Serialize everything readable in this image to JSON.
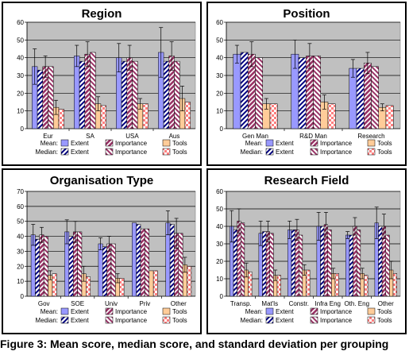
{
  "caption": "Figure 3: Mean score, median score, and standard deviation per grouping",
  "legend": {
    "mean_label": "Mean:",
    "median_label": "Median:",
    "items": [
      "Extent",
      "Importance",
      "Tools"
    ]
  },
  "colors": {
    "extent": "#9999ff",
    "importance": "#993366",
    "tools": "#ffcc99",
    "plot_bg": "#c0c0c0",
    "gridline": "#000000",
    "median_extent_stripe": "#000080",
    "median_importance_stripe": "#993366",
    "median_tools_dots": "#ff8080"
  },
  "chart_data": [
    {
      "type": "bar",
      "title": "Region",
      "categories": [
        "Eur",
        "SA",
        "USA",
        "Aus"
      ],
      "ylim": [
        0,
        60
      ],
      "yticks": [
        0,
        10,
        20,
        30,
        40,
        50,
        60
      ],
      "grid": true,
      "legend_position": "bottom",
      "series": [
        {
          "name": "Extent",
          "stat": "mean",
          "values": [
            35,
            41,
            40,
            43
          ],
          "error": [
            10,
            6,
            8,
            14
          ]
        },
        {
          "name": "Extent",
          "stat": "median",
          "values": [
            33,
            38,
            38,
            38
          ]
        },
        {
          "name": "Importance",
          "stat": "mean",
          "values": [
            35,
            42,
            40,
            41
          ],
          "error": [
            6,
            7,
            7,
            8
          ]
        },
        {
          "name": "Importance",
          "stat": "median",
          "values": [
            35,
            43,
            38,
            38
          ]
        },
        {
          "name": "Tools",
          "stat": "mean",
          "values": [
            12,
            14,
            14,
            17
          ],
          "error": [
            4,
            4,
            3,
            7
          ]
        },
        {
          "name": "Tools",
          "stat": "median",
          "values": [
            11,
            13,
            14,
            15
          ]
        }
      ]
    },
    {
      "type": "bar",
      "title": "Position",
      "categories": [
        "Gen Man",
        "R&D Man",
        "Research"
      ],
      "ylim": [
        0,
        60
      ],
      "yticks": [
        0,
        10,
        20,
        30,
        40,
        50,
        60
      ],
      "grid": true,
      "legend_position": "bottom",
      "series": [
        {
          "name": "Extent",
          "stat": "mean",
          "values": [
            42,
            42,
            34
          ],
          "error": [
            5,
            8,
            5
          ]
        },
        {
          "name": "Extent",
          "stat": "median",
          "values": [
            43,
            40,
            34
          ]
        },
        {
          "name": "Importance",
          "stat": "mean",
          "values": [
            42,
            41,
            37
          ],
          "error": [
            7,
            7,
            6
          ]
        },
        {
          "name": "Importance",
          "stat": "median",
          "values": [
            40,
            41,
            35
          ]
        },
        {
          "name": "Tools",
          "stat": "mean",
          "values": [
            14,
            15,
            12
          ],
          "error": [
            3,
            4,
            2
          ]
        },
        {
          "name": "Tools",
          "stat": "median",
          "values": [
            14,
            14,
            13
          ]
        }
      ]
    },
    {
      "type": "bar",
      "title": "Organisation Type",
      "categories": [
        "Gov",
        "SOE",
        "Univ",
        "Priv",
        "Other"
      ],
      "ylim": [
        0,
        70
      ],
      "yticks": [
        0,
        10,
        20,
        30,
        40,
        50,
        60,
        70
      ],
      "grid": true,
      "legend_position": "bottom",
      "series": [
        {
          "name": "Extent",
          "stat": "mean",
          "values": [
            41,
            43,
            35,
            49,
            49
          ],
          "error": [
            7,
            8,
            4,
            0,
            8
          ]
        },
        {
          "name": "Extent",
          "stat": "median",
          "values": [
            38,
            40,
            33,
            48,
            48
          ]
        },
        {
          "name": "Importance",
          "stat": "mean",
          "values": [
            41,
            43,
            35,
            45,
            42
          ],
          "error": [
            5,
            7,
            5,
            0,
            10
          ]
        },
        {
          "name": "Importance",
          "stat": "median",
          "values": [
            40,
            43,
            35,
            45,
            42
          ]
        },
        {
          "name": "Tools",
          "stat": "mean",
          "values": [
            14,
            15,
            12,
            17,
            21
          ],
          "error": [
            3,
            5,
            3,
            0,
            5
          ]
        },
        {
          "name": "Tools",
          "stat": "median",
          "values": [
            15,
            13,
            12,
            17,
            20
          ]
        }
      ]
    },
    {
      "type": "bar",
      "title": "Research Field",
      "categories": [
        "Transp.",
        "Mat'ls",
        "Constr.",
        "Infra Eng",
        "Oth. Eng",
        "Other"
      ],
      "ylim": [
        0,
        60
      ],
      "yticks": [
        0,
        10,
        20,
        30,
        40,
        50,
        60
      ],
      "grid": true,
      "legend_position": "bottom",
      "series": [
        {
          "name": "Extent",
          "stat": "mean",
          "values": [
            40,
            36,
            38,
            40,
            35,
            42
          ],
          "error": [
            9,
            7,
            5,
            8,
            2,
            9
          ]
        },
        {
          "name": "Extent",
          "stat": "median",
          "values": [
            38,
            37,
            38,
            40,
            35,
            40
          ]
        },
        {
          "name": "Importance",
          "stat": "mean",
          "values": [
            43,
            37,
            38,
            41,
            40,
            40
          ],
          "error": [
            7,
            6,
            6,
            7,
            5,
            7
          ]
        },
        {
          "name": "Importance",
          "stat": "median",
          "values": [
            42,
            36,
            35,
            38,
            38,
            35
          ]
        },
        {
          "name": "Tools",
          "stat": "mean",
          "values": [
            15,
            12,
            15,
            13,
            13,
            15
          ],
          "error": [
            4,
            3,
            3,
            3,
            3,
            5
          ]
        },
        {
          "name": "Tools",
          "stat": "median",
          "values": [
            14,
            12,
            15,
            13,
            12,
            13
          ]
        }
      ]
    }
  ]
}
